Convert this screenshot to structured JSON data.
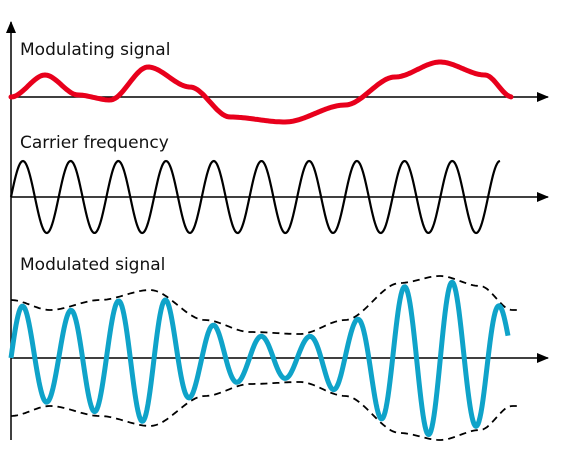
{
  "labels": {
    "modulating": "Modulating signal",
    "carrier": "Carrier frequency",
    "modulated": "Modulated signal"
  },
  "colors": {
    "modulating": "#e8001c",
    "carrier": "#000000",
    "modulated": "#0fa3c9",
    "envelope": "#000000",
    "axis": "#000000"
  },
  "carrier_cycles": 10
}
